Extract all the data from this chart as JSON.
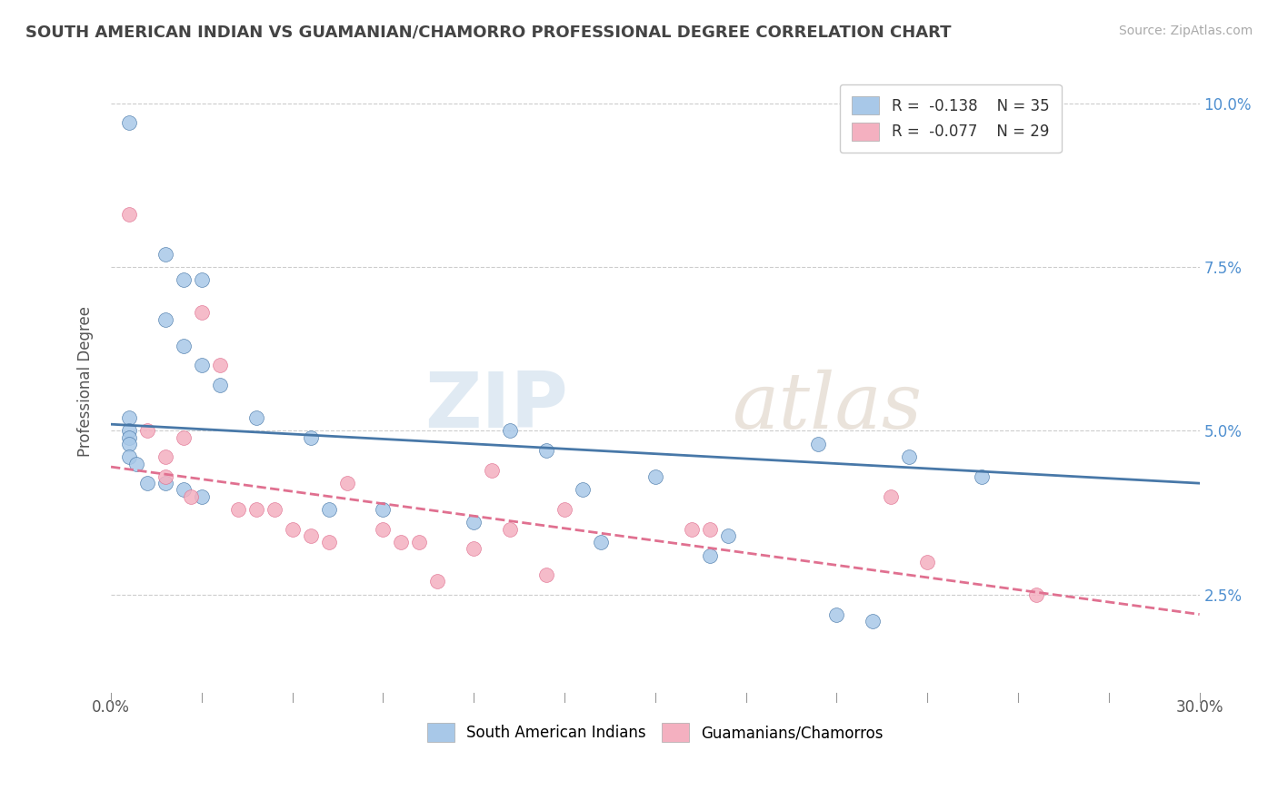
{
  "title": "SOUTH AMERICAN INDIAN VS GUAMANIAN/CHAMORRO PROFESSIONAL DEGREE CORRELATION CHART",
  "source": "Source: ZipAtlas.com",
  "ylabel": "Professional Degree",
  "xlim": [
    0.0,
    0.3
  ],
  "ylim": [
    0.01,
    0.105
  ],
  "xticks": [
    0.0,
    0.025,
    0.05,
    0.075,
    0.1,
    0.125,
    0.15,
    0.175,
    0.2,
    0.225,
    0.25,
    0.275,
    0.3
  ],
  "xtick_labels_show": [
    "0.0%",
    "",
    "",
    "",
    "",
    "",
    "",
    "",
    "",
    "",
    "",
    "",
    "30.0%"
  ],
  "yticks": [
    0.025,
    0.05,
    0.075,
    0.1
  ],
  "ytick_labels": [
    "2.5%",
    "5.0%",
    "7.5%",
    "10.0%"
  ],
  "legend_r1": "R =  -0.138",
  "legend_n1": "N = 35",
  "legend_r2": "R =  -0.077",
  "legend_n2": "N = 29",
  "series1_label": "South American Indians",
  "series2_label": "Guamanians/Chamorros",
  "series1_color": "#a8c8e8",
  "series2_color": "#f4b0c0",
  "line1_color": "#4878a8",
  "line2_color": "#e07090",
  "background_color": "#ffffff",
  "watermark_zip": "ZIP",
  "watermark_atlas": "atlas",
  "scatter1_x": [
    0.005,
    0.015,
    0.02,
    0.025,
    0.015,
    0.02,
    0.025,
    0.03,
    0.005,
    0.005,
    0.005,
    0.005,
    0.005,
    0.007,
    0.01,
    0.015,
    0.02,
    0.025,
    0.04,
    0.055,
    0.06,
    0.075,
    0.1,
    0.11,
    0.12,
    0.13,
    0.135,
    0.15,
    0.165,
    0.17,
    0.195,
    0.2,
    0.21,
    0.22,
    0.24
  ],
  "scatter1_y": [
    0.097,
    0.077,
    0.073,
    0.073,
    0.067,
    0.063,
    0.06,
    0.057,
    0.052,
    0.05,
    0.049,
    0.048,
    0.046,
    0.045,
    0.042,
    0.042,
    0.041,
    0.04,
    0.052,
    0.049,
    0.038,
    0.038,
    0.036,
    0.05,
    0.047,
    0.041,
    0.033,
    0.043,
    0.031,
    0.034,
    0.048,
    0.022,
    0.021,
    0.046,
    0.043
  ],
  "scatter2_x": [
    0.005,
    0.01,
    0.015,
    0.015,
    0.02,
    0.022,
    0.025,
    0.03,
    0.035,
    0.04,
    0.045,
    0.05,
    0.055,
    0.06,
    0.065,
    0.075,
    0.08,
    0.085,
    0.09,
    0.1,
    0.105,
    0.11,
    0.12,
    0.125,
    0.16,
    0.165,
    0.215,
    0.225,
    0.255
  ],
  "scatter2_y": [
    0.083,
    0.05,
    0.046,
    0.043,
    0.049,
    0.04,
    0.068,
    0.06,
    0.038,
    0.038,
    0.038,
    0.035,
    0.034,
    0.033,
    0.042,
    0.035,
    0.033,
    0.033,
    0.027,
    0.032,
    0.044,
    0.035,
    0.028,
    0.038,
    0.035,
    0.035,
    0.04,
    0.03,
    0.025
  ],
  "line1_intercept": 0.051,
  "line1_slope": -0.03,
  "line2_intercept": 0.0445,
  "line2_slope": -0.075
}
